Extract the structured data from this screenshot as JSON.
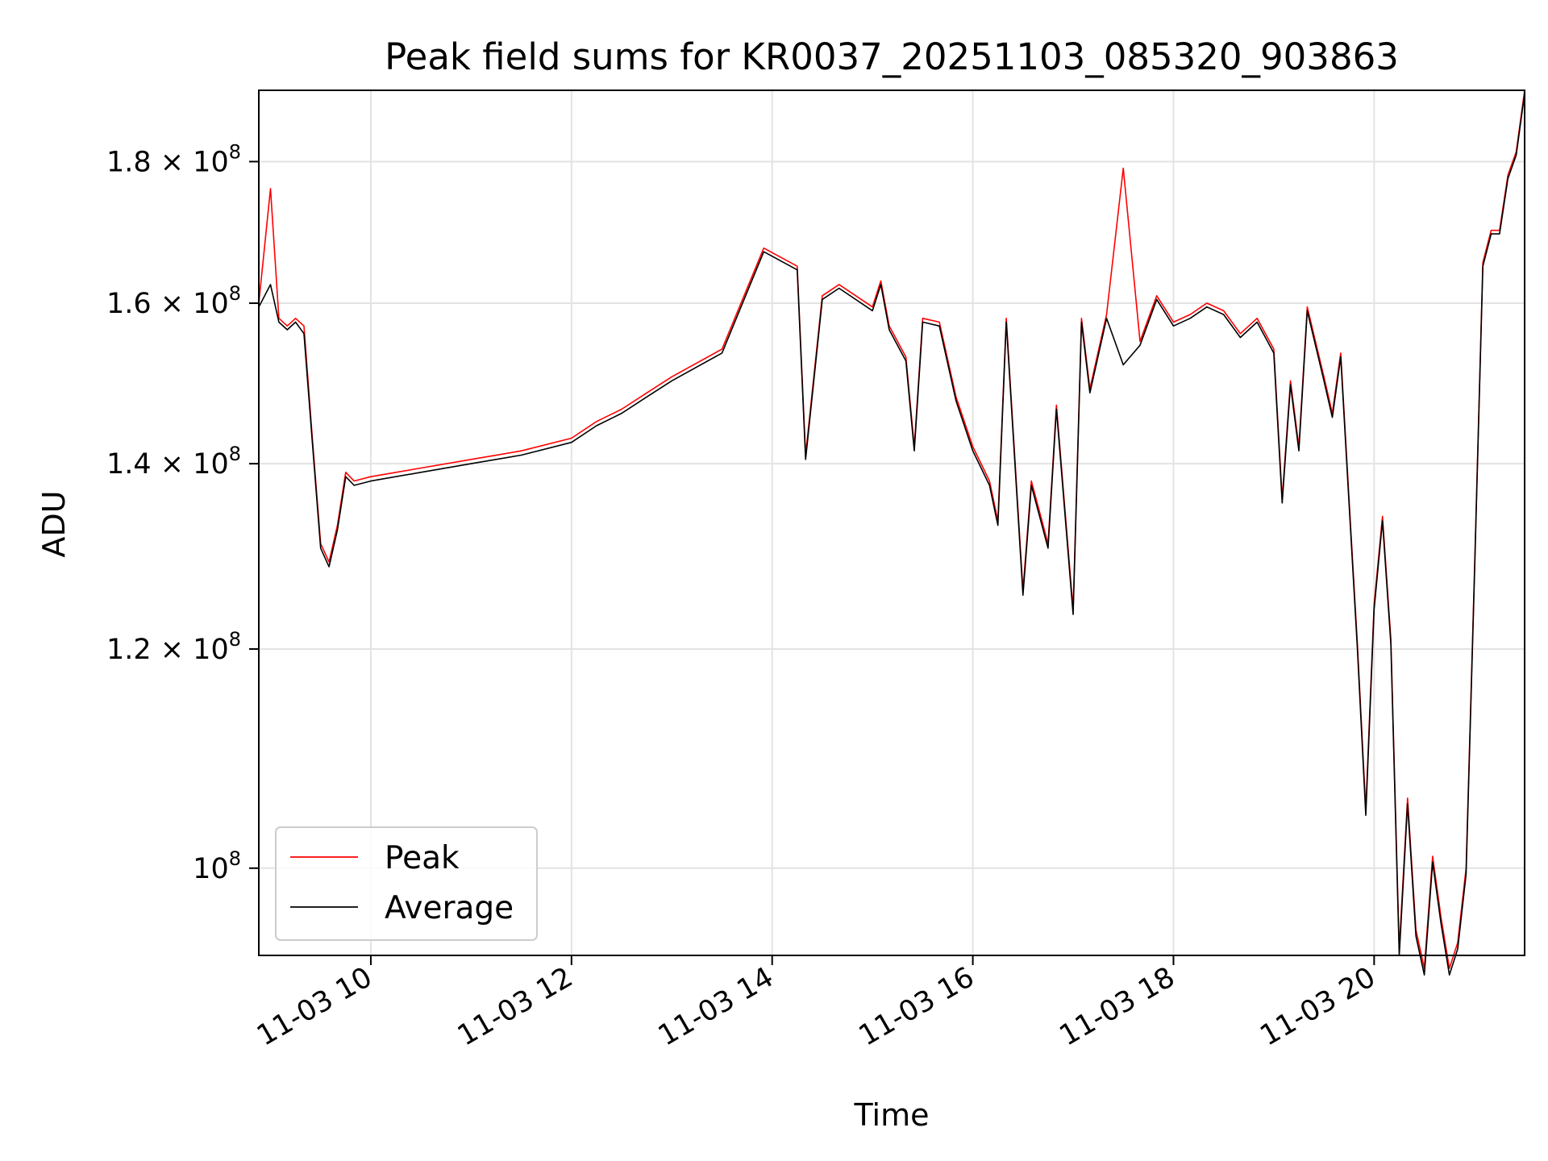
{
  "chart_data": {
    "type": "line",
    "title": "Peak field sums for KR0037_20251103_085320_903863",
    "xlabel": "Time",
    "ylabel": "ADU",
    "y_scale": "log",
    "grid": true,
    "legend_position": "lower-left",
    "xlim": [
      "2025-11-03 08:53",
      "2025-11-03 21:30"
    ],
    "ylim": [
      93000000,
      191000000
    ],
    "x_ticks": [
      {
        "value": "2025-11-03 10:00",
        "label": "11-03 10"
      },
      {
        "value": "2025-11-03 12:00",
        "label": "11-03 12"
      },
      {
        "value": "2025-11-03 14:00",
        "label": "11-03 14"
      },
      {
        "value": "2025-11-03 16:00",
        "label": "11-03 16"
      },
      {
        "value": "2025-11-03 18:00",
        "label": "11-03 18"
      },
      {
        "value": "2025-11-03 20:00",
        "label": "11-03 20"
      }
    ],
    "y_ticks": [
      {
        "value": 100000000,
        "label": "10",
        "exp": "8"
      },
      {
        "value": 120000000,
        "label": "1.2 × 10",
        "exp": "8"
      },
      {
        "value": 140000000,
        "label": "1.4 × 10",
        "exp": "8"
      },
      {
        "value": 160000000,
        "label": "1.6 × 10",
        "exp": "8"
      },
      {
        "value": 180000000,
        "label": "1.8 × 10",
        "exp": "8"
      }
    ],
    "x": [
      "2025-11-03 08:53",
      "2025-11-03 09:00",
      "2025-11-03 09:05",
      "2025-11-03 09:10",
      "2025-11-03 09:15",
      "2025-11-03 09:20",
      "2025-11-03 09:25",
      "2025-11-03 09:30",
      "2025-11-03 09:35",
      "2025-11-03 09:40",
      "2025-11-03 09:45",
      "2025-11-03 09:50",
      "2025-11-03 10:00",
      "2025-11-03 10:30",
      "2025-11-03 11:00",
      "2025-11-03 11:30",
      "2025-11-03 12:00",
      "2025-11-03 12:15",
      "2025-11-03 12:30",
      "2025-11-03 12:45",
      "2025-11-03 13:00",
      "2025-11-03 13:30",
      "2025-11-03 13:55",
      "2025-11-03 14:15",
      "2025-11-03 14:20",
      "2025-11-03 14:30",
      "2025-11-03 14:40",
      "2025-11-03 15:00",
      "2025-11-03 15:05",
      "2025-11-03 15:10",
      "2025-11-03 15:20",
      "2025-11-03 15:25",
      "2025-11-03 15:30",
      "2025-11-03 15:40",
      "2025-11-03 15:50",
      "2025-11-03 16:00",
      "2025-11-03 16:10",
      "2025-11-03 16:15",
      "2025-11-03 16:20",
      "2025-11-03 16:30",
      "2025-11-03 16:35",
      "2025-11-03 16:45",
      "2025-11-03 16:50",
      "2025-11-03 17:00",
      "2025-11-03 17:05",
      "2025-11-03 17:10",
      "2025-11-03 17:20",
      "2025-11-03 17:30",
      "2025-11-03 17:40",
      "2025-11-03 17:50",
      "2025-11-03 18:00",
      "2025-11-03 18:10",
      "2025-11-03 18:20",
      "2025-11-03 18:30",
      "2025-11-03 18:40",
      "2025-11-03 18:50",
      "2025-11-03 19:00",
      "2025-11-03 19:05",
      "2025-11-03 19:10",
      "2025-11-03 19:15",
      "2025-11-03 19:20",
      "2025-11-03 19:30",
      "2025-11-03 19:35",
      "2025-11-03 19:40",
      "2025-11-03 19:45",
      "2025-11-03 19:50",
      "2025-11-03 19:55",
      "2025-11-03 20:00",
      "2025-11-03 20:05",
      "2025-11-03 20:10",
      "2025-11-03 20:15",
      "2025-11-03 20:20",
      "2025-11-03 20:25",
      "2025-11-03 20:30",
      "2025-11-03 20:35",
      "2025-11-03 20:40",
      "2025-11-03 20:45",
      "2025-11-03 20:50",
      "2025-11-03 20:55",
      "2025-11-03 21:00",
      "2025-11-03 21:05",
      "2025-11-03 21:10",
      "2025-11-03 21:15",
      "2025-11-03 21:20",
      "2025-11-03 21:25",
      "2025-11-03 21:30"
    ],
    "series": [
      {
        "name": "Peak",
        "color": "#ff0000",
        "values": [
          160000000,
          176000000,
          158000000,
          157000000,
          158000000,
          157000000,
          143000000,
          131000000,
          129000000,
          133000000,
          139000000,
          138000000,
          138500000,
          139500000,
          140500000,
          141500000,
          143000000,
          145000000,
          146500000,
          148500000,
          150500000,
          154000000,
          167500000,
          165000000,
          141000000,
          161000000,
          162500000,
          159500000,
          163000000,
          157000000,
          153000000,
          142000000,
          158000000,
          157500000,
          148000000,
          142000000,
          138000000,
          133500000,
          158000000,
          126000000,
          138000000,
          131000000,
          147000000,
          124000000,
          158000000,
          149000000,
          158500000,
          179000000,
          155000000,
          161000000,
          157500000,
          158500000,
          160000000,
          159000000,
          156000000,
          158000000,
          154000000,
          136000000,
          150000000,
          142000000,
          159500000,
          150500000,
          146000000,
          153500000,
          136000000,
          120500000,
          105000000,
          124500000,
          134000000,
          121000000,
          93500000,
          106000000,
          95000000,
          92000000,
          101000000,
          96000000,
          92000000,
          94000000,
          100000000,
          128000000,
          165500000,
          170000000,
          170000000,
          178000000,
          181500000,
          191000000
        ]
      },
      {
        "name": "Average",
        "color": "#000000",
        "values": [
          159500000,
          162500000,
          157500000,
          156500000,
          157500000,
          156000000,
          142500000,
          130500000,
          128500000,
          132500000,
          138500000,
          137500000,
          138000000,
          139000000,
          140000000,
          141000000,
          142500000,
          144500000,
          146000000,
          148000000,
          150000000,
          153500000,
          167000000,
          164500000,
          140500000,
          160500000,
          162000000,
          159000000,
          162500000,
          156500000,
          152500000,
          141500000,
          157500000,
          157000000,
          147500000,
          141500000,
          137500000,
          133000000,
          157500000,
          125500000,
          137500000,
          130500000,
          146500000,
          123500000,
          157500000,
          148500000,
          158000000,
          152000000,
          154500000,
          160500000,
          157000000,
          158000000,
          159500000,
          158500000,
          155500000,
          157500000,
          153500000,
          135500000,
          149500000,
          141500000,
          159000000,
          150000000,
          145500000,
          153000000,
          135500000,
          120000000,
          104500000,
          124000000,
          133500000,
          120500000,
          93000000,
          105500000,
          94500000,
          91500000,
          100500000,
          95500000,
          91500000,
          93500000,
          99500000,
          127500000,
          165000000,
          169500000,
          169500000,
          177500000,
          181000000,
          190500000
        ]
      }
    ],
    "legend": [
      {
        "label": "Peak",
        "color": "#ff0000"
      },
      {
        "label": "Average",
        "color": "#000000"
      }
    ]
  }
}
